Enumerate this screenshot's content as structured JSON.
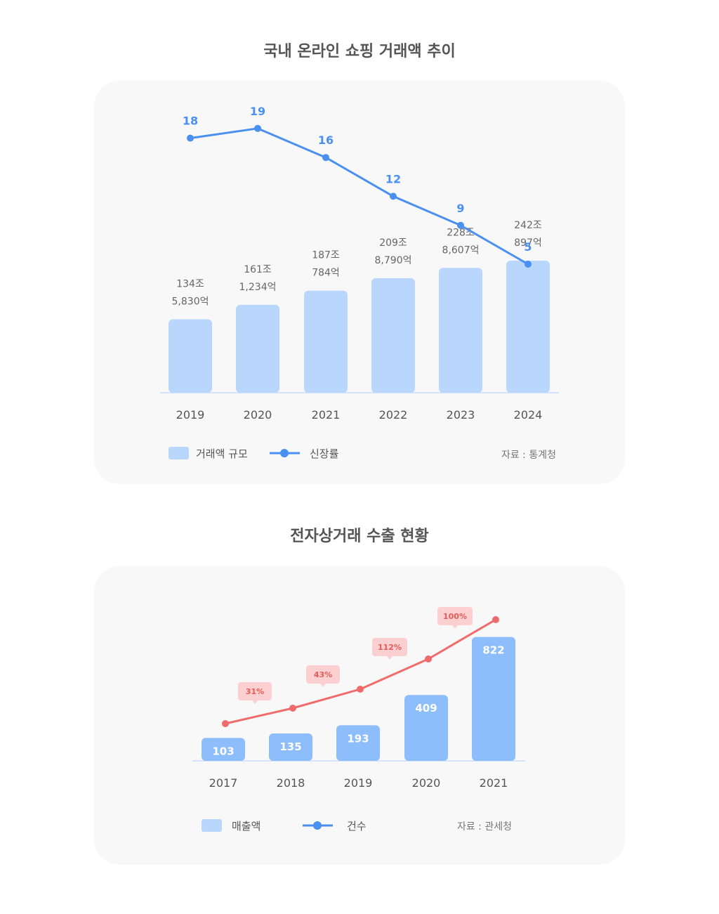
{
  "charts": {
    "title1": "국내 온라인 쇼핑 거래액 추이",
    "title2": "전자상거래 수출 현황"
  },
  "chart_data": [
    {
      "type": "bar",
      "title": "국내 온라인 쇼핑 거래액 추이",
      "categories": [
        "2019",
        "2020",
        "2021",
        "2022",
        "2023",
        "2024"
      ],
      "series": [
        {
          "name": "거래액 규모",
          "type": "bar",
          "values": [
            134.583,
            161.1234,
            187.0784,
            209.879,
            228.8607,
            242.0897
          ],
          "labels": [
            [
              "134조",
              "5,830억"
            ],
            [
              "161조",
              "1,234억"
            ],
            [
              "187조",
              "784억"
            ],
            [
              "209조",
              "8,790억"
            ],
            [
              "228조",
              "8,607억"
            ],
            [
              "242조",
              "897억"
            ]
          ]
        },
        {
          "name": "신장률",
          "type": "line",
          "values": [
            18,
            19,
            16,
            12,
            9,
            5
          ]
        }
      ],
      "legend": [
        "거래액 규모",
        "신장률"
      ],
      "legend_position": "bottom-left",
      "source": "자료 : 통계청",
      "colors": {
        "bar": "#b9d6fc",
        "line": "#4a90f0",
        "label": "#666666",
        "axis": "#c8dcf8"
      }
    },
    {
      "type": "bar",
      "title": "전자상거래 수출 현황",
      "categories": [
        "2017",
        "2018",
        "2019",
        "2020",
        "2021"
      ],
      "series": [
        {
          "name": "매출액",
          "type": "bar",
          "values": [
            103,
            135,
            193,
            409,
            822
          ]
        },
        {
          "name": "건수",
          "type": "line",
          "growth_labels": [
            "",
            "31%",
            "43%",
            "112%",
            "100%"
          ]
        }
      ],
      "legend": [
        "매출액",
        "건수"
      ],
      "legend_position": "bottom-left",
      "source": "자료 : 관세청",
      "colors": {
        "bar": "#8dbdfb",
        "line": "#f06b6b",
        "bubble": "#fcd0d0",
        "bubble_text": "#e85a5a",
        "legend_line": "#4a90f0",
        "legend_box": "#b9d6fc"
      }
    }
  ]
}
